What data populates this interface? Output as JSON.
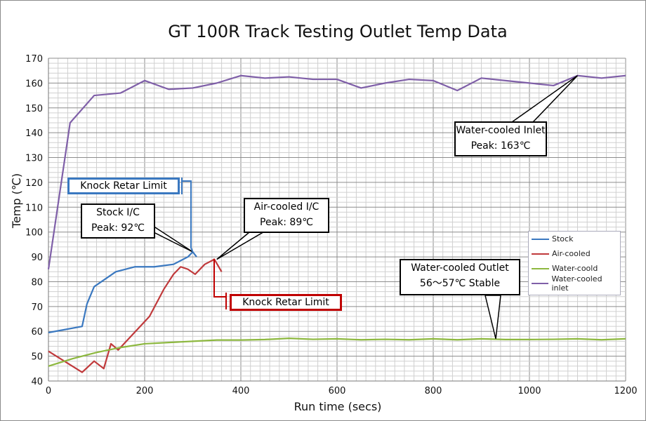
{
  "chart_data": {
    "type": "line",
    "title": "GT 100R Track Testing Outlet Temp Data",
    "xlabel": "Run time (secs)",
    "ylabel": "Temp (℃)",
    "xlim": [
      0,
      1200
    ],
    "ylim": [
      40,
      170
    ],
    "xticks": [
      0,
      200,
      400,
      600,
      800,
      1000,
      1200
    ],
    "yticks": [
      40,
      50,
      60,
      70,
      80,
      90,
      100,
      110,
      120,
      130,
      140,
      150,
      160,
      170
    ],
    "grid": true,
    "legend_position": "right",
    "series": [
      {
        "name": "Stock",
        "color": "#3a78c0",
        "points": [
          [
            0,
            59.5
          ],
          [
            70,
            62
          ],
          [
            80,
            71
          ],
          [
            95,
            78
          ],
          [
            140,
            84
          ],
          [
            180,
            86
          ],
          [
            220,
            86
          ],
          [
            260,
            87
          ],
          [
            290,
            90
          ],
          [
            300,
            92
          ],
          [
            308,
            90
          ]
        ]
      },
      {
        "name": "Air-cooled",
        "color": "#c0393b",
        "points": [
          [
            0,
            52
          ],
          [
            70,
            43.5
          ],
          [
            95,
            48
          ],
          [
            115,
            45
          ],
          [
            130,
            55
          ],
          [
            145,
            52.5
          ],
          [
            210,
            66
          ],
          [
            240,
            77
          ],
          [
            260,
            83
          ],
          [
            275,
            86
          ],
          [
            290,
            85
          ],
          [
            305,
            83
          ],
          [
            325,
            87
          ],
          [
            345,
            89
          ],
          [
            360,
            84
          ]
        ]
      },
      {
        "name": "Water-coold",
        "color": "#8db83f",
        "points": [
          [
            0,
            46
          ],
          [
            50,
            49
          ],
          [
            100,
            51.5
          ],
          [
            150,
            53.5
          ],
          [
            200,
            55
          ],
          [
            250,
            55.5
          ],
          [
            300,
            56
          ],
          [
            350,
            56.5
          ],
          [
            400,
            56.5
          ],
          [
            450,
            56.7
          ],
          [
            500,
            57.2
          ],
          [
            550,
            56.8
          ],
          [
            600,
            57
          ],
          [
            650,
            56.6
          ],
          [
            700,
            56.8
          ],
          [
            750,
            56.6
          ],
          [
            800,
            57
          ],
          [
            850,
            56.6
          ],
          [
            900,
            57
          ],
          [
            950,
            56.7
          ],
          [
            1000,
            56.7
          ],
          [
            1050,
            56.8
          ],
          [
            1100,
            57
          ],
          [
            1150,
            56.6
          ],
          [
            1200,
            57
          ]
        ]
      },
      {
        "name": "Water-cooled inlet",
        "color": "#7f5fa8",
        "points": [
          [
            0,
            85
          ],
          [
            45,
            144
          ],
          [
            95,
            155
          ],
          [
            150,
            156
          ],
          [
            200,
            161
          ],
          [
            250,
            157.5
          ],
          [
            300,
            158
          ],
          [
            350,
            160
          ],
          [
            400,
            163
          ],
          [
            450,
            162
          ],
          [
            500,
            162.5
          ],
          [
            550,
            161.5
          ],
          [
            600,
            161.5
          ],
          [
            650,
            158
          ],
          [
            700,
            160
          ],
          [
            750,
            161.5
          ],
          [
            800,
            161
          ],
          [
            850,
            157
          ],
          [
            900,
            162
          ],
          [
            950,
            161
          ],
          [
            1000,
            160
          ],
          [
            1050,
            159
          ],
          [
            1100,
            163
          ],
          [
            1150,
            162
          ],
          [
            1200,
            163
          ]
        ]
      }
    ],
    "annotations": {
      "inlet": [
        "Water-cooled Inlet",
        "Peak: 163℃"
      ],
      "stock": [
        "Stock I/C",
        "Peak: 92℃"
      ],
      "air": [
        "Air-cooled I/C",
        "Peak: 89℃"
      ],
      "outlet": [
        "Water-cooled Outlet",
        "56～57℃ Stable"
      ],
      "knock_stock": "Knock Retar Limit",
      "knock_air": "Knock Retar Limit"
    }
  }
}
